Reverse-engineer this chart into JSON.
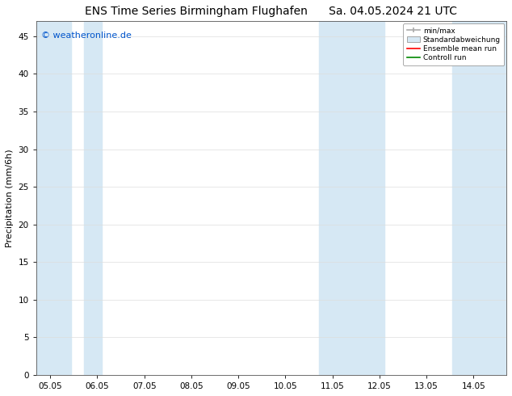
{
  "title": "ENS Time Series Birmingham Flughafen",
  "title_right": "Sa. 04.05.2024 21 UTC",
  "ylabel": "Precipitation (mm/6h)",
  "watermark": "© weatheronline.de",
  "watermark_color": "#0055cc",
  "x_tick_labels": [
    "05.05",
    "06.05",
    "07.05",
    "08.05",
    "09.05",
    "10.05",
    "11.05",
    "12.05",
    "13.05",
    "14.05"
  ],
  "x_tick_positions": [
    0,
    1,
    2,
    3,
    4,
    5,
    6,
    7,
    8,
    9
  ],
  "ylim": [
    0,
    47
  ],
  "xlim": [
    -0.3,
    9.7
  ],
  "yticks": [
    0,
    5,
    10,
    15,
    20,
    25,
    30,
    35,
    40,
    45
  ],
  "background_color": "#ffffff",
  "plot_bg_color": "#ffffff",
  "shade_color": "#d6e8f4",
  "shade_regions": [
    [
      -0.3,
      0.45
    ],
    [
      0.72,
      1.1
    ],
    [
      5.72,
      7.1
    ],
    [
      8.55,
      9.7
    ]
  ],
  "minmax_color": "#aaaaaa",
  "stddev_color": "#c8dce8",
  "ensemble_mean_color": "#ff0000",
  "control_run_color": "#008800",
  "legend_labels": [
    "min/max",
    "Standardabweichung",
    "Ensemble mean run",
    "Controll run"
  ],
  "title_fontsize": 10,
  "axis_fontsize": 8,
  "tick_fontsize": 7.5,
  "watermark_fontsize": 8
}
